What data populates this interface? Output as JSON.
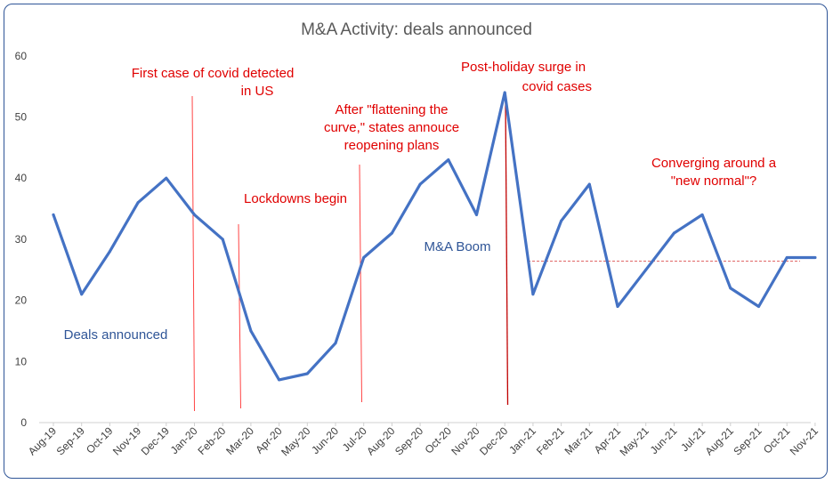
{
  "chart_data": {
    "type": "line",
    "title": "M&A Activity: deals announced",
    "xlabel": "",
    "ylabel": "",
    "ylim": [
      0,
      60
    ],
    "yticks": [
      0,
      10,
      20,
      30,
      40,
      50,
      60
    ],
    "grid": false,
    "categories": [
      "Aug-19",
      "Sep-19",
      "Oct-19",
      "Nov-19",
      "Dec-19",
      "Jan-20",
      "Feb-20",
      "Mar-20",
      "Apr-20",
      "May-20",
      "Jun-20",
      "Jul-20",
      "Aug-20",
      "Sep-20",
      "Oct-20",
      "Nov-20",
      "Dec-20",
      "Jan-21",
      "Feb-21",
      "Mar-21",
      "Apr-21",
      "May-21",
      "Jun-21",
      "Jul-21",
      "Aug-21",
      "Sep-21",
      "Oct-21",
      "Nov-21"
    ],
    "series": [
      {
        "name": "",
        "color": "#4472c4",
        "values": [
          34,
          21,
          28,
          36,
          40,
          34,
          30,
          15,
          7,
          8,
          13,
          27,
          31,
          39,
          43,
          34,
          54,
          21,
          33,
          39,
          19,
          25,
          31,
          34,
          22,
          19,
          27,
          27
        ]
      }
    ],
    "reference_line": {
      "value": 26.5,
      "from_category": "Jan-21",
      "to_category": "Nov-21",
      "color": "#e06666",
      "style": "dashed"
    },
    "event_lines": [
      {
        "category": "Jan-20",
        "color": "#ff4444"
      },
      {
        "category": "Mar-20",
        "color": "#ff4444"
      },
      {
        "category": "Jul-20",
        "color": "#ff4444"
      },
      {
        "category": "Dec-20",
        "color": "#c00000"
      }
    ],
    "annotations": [
      {
        "lines": [
          "First case of covid detected",
          "in US"
        ],
        "color": "#e00000"
      },
      {
        "lines": [
          "Lockdowns begin"
        ],
        "color": "#e00000"
      },
      {
        "lines": [
          "After \"flattening the",
          "curve,\" states annouce",
          "reopening plans"
        ],
        "color": "#e00000"
      },
      {
        "lines": [
          "Post-holiday surge in",
          "covid cases"
        ],
        "color": "#e00000"
      },
      {
        "lines": [
          "Converging around a",
          "\"new normal\"?"
        ],
        "color": "#e00000"
      },
      {
        "lines": [
          "M&A Boom"
        ],
        "color": "#2f5597"
      },
      {
        "lines": [
          "Deals announced"
        ],
        "color": "#2f5597"
      }
    ]
  }
}
